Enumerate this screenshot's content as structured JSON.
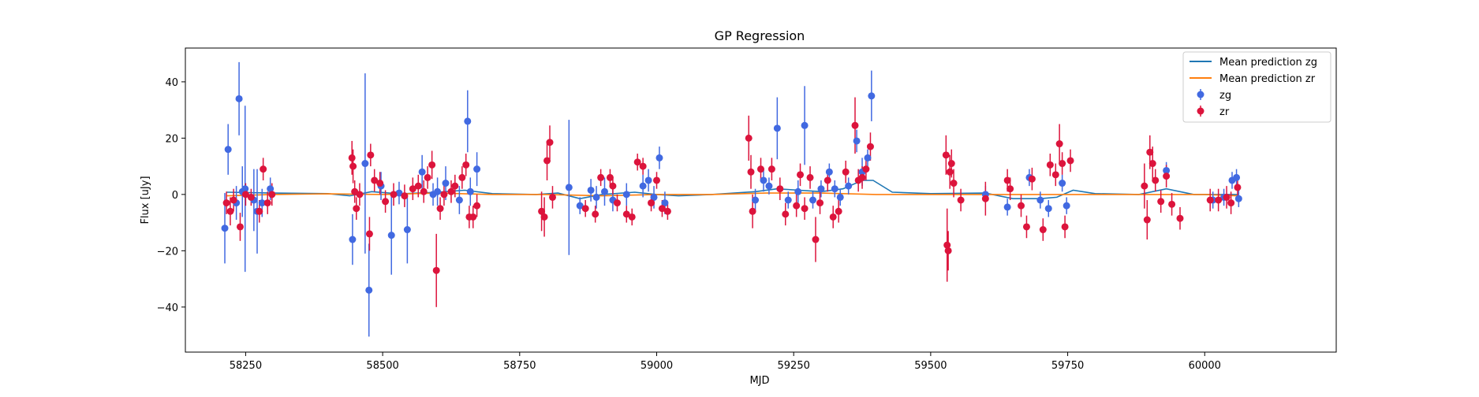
{
  "chart_data": {
    "type": "scatter",
    "title": "GP Regression",
    "xlabel": "MJD",
    "ylabel": "Flux [uJy]",
    "xlim": [
      58140,
      60240
    ],
    "ylim": [
      -56,
      52
    ],
    "xticks": [
      58250,
      58500,
      58750,
      59000,
      59250,
      59500,
      59750,
      60000
    ],
    "yticks": [
      -40,
      -20,
      0,
      20,
      40
    ],
    "grid": false,
    "legend_position": "top-right",
    "colors": {
      "zg": "#4169e1",
      "zr": "#dc143c",
      "line_zg": "#1f77b4",
      "line_zr": "#ff7f0e"
    },
    "legend": [
      "Mean prediction zg",
      "Mean prediction zr",
      "zg",
      "zr"
    ],
    "mean_zg": [
      [
        58215,
        0.8
      ],
      [
        58300,
        0.5
      ],
      [
        58400,
        0.3
      ],
      [
        58440,
        -0.5
      ],
      [
        58480,
        1.0
      ],
      [
        58530,
        0.2
      ],
      [
        58600,
        0.8
      ],
      [
        58650,
        1.5
      ],
      [
        58700,
        0.3
      ],
      [
        58780,
        0.0
      ],
      [
        58820,
        0.5
      ],
      [
        58860,
        -1.5
      ],
      [
        58900,
        0.0
      ],
      [
        58960,
        0.8
      ],
      [
        59000,
        0.0
      ],
      [
        59040,
        -0.5
      ],
      [
        59100,
        0.0
      ],
      [
        59180,
        1.0
      ],
      [
        59220,
        2.0
      ],
      [
        59260,
        1.5
      ],
      [
        59300,
        1.0
      ],
      [
        59340,
        2.0
      ],
      [
        59375,
        5.0
      ],
      [
        59395,
        5.0
      ],
      [
        59430,
        0.8
      ],
      [
        59500,
        0.3
      ],
      [
        59600,
        0.5
      ],
      [
        59650,
        -1.5
      ],
      [
        59700,
        -1.5
      ],
      [
        59730,
        -1.0
      ],
      [
        59760,
        1.5
      ],
      [
        59800,
        0.3
      ],
      [
        59880,
        0.0
      ],
      [
        59930,
        2.0
      ],
      [
        59980,
        0.0
      ],
      [
        60060,
        0.0
      ]
    ],
    "mean_zr": [
      [
        58215,
        -0.5
      ],
      [
        58300,
        0.0
      ],
      [
        58400,
        0.2
      ],
      [
        58500,
        0.0
      ],
      [
        58600,
        0.5
      ],
      [
        58700,
        0.0
      ],
      [
        58800,
        0.0
      ],
      [
        58900,
        -0.5
      ],
      [
        59000,
        0.0
      ],
      [
        59100,
        0.0
      ],
      [
        59200,
        0.5
      ],
      [
        59300,
        0.5
      ],
      [
        59400,
        0.0
      ],
      [
        59500,
        0.0
      ],
      [
        59600,
        0.0
      ],
      [
        59700,
        0.0
      ],
      [
        59800,
        0.0
      ],
      [
        59900,
        0.0
      ],
      [
        60000,
        0.0
      ],
      [
        60060,
        -0.5
      ]
    ],
    "zg": [
      [
        58212,
        -12,
        12.5
      ],
      [
        58218,
        16,
        9
      ],
      [
        58233,
        -3,
        6
      ],
      [
        58238,
        34,
        13
      ],
      [
        58244,
        1,
        9
      ],
      [
        58249,
        2,
        29.5
      ],
      [
        58265,
        -2,
        11
      ],
      [
        58271,
        -6,
        15
      ],
      [
        58280,
        -3,
        5
      ],
      [
        58295,
        2,
        4
      ],
      [
        58445,
        -16,
        9
      ],
      [
        58468,
        11,
        32
      ],
      [
        58475,
        -34,
        16.5
      ],
      [
        58497,
        3,
        5
      ],
      [
        58516,
        -14.5,
        14
      ],
      [
        58530,
        0.5,
        4
      ],
      [
        58545,
        -12.5,
        12
      ],
      [
        58572,
        8,
        6
      ],
      [
        58592,
        0,
        4
      ],
      [
        58600,
        1,
        5
      ],
      [
        58615,
        4,
        6
      ],
      [
        58640,
        -2,
        5
      ],
      [
        58655,
        26,
        11
      ],
      [
        58660,
        1,
        5
      ],
      [
        58672,
        9,
        6
      ],
      [
        58840,
        2.5,
        24
      ],
      [
        58860,
        -4,
        3
      ],
      [
        58880,
        1.5,
        4
      ],
      [
        58890,
        -1,
        4
      ],
      [
        58905,
        1,
        5
      ],
      [
        58920,
        -2,
        4
      ],
      [
        58945,
        0,
        4
      ],
      [
        58975,
        3,
        4
      ],
      [
        58985,
        5,
        4
      ],
      [
        58995,
        -1,
        4
      ],
      [
        59005,
        13,
        4
      ],
      [
        59015,
        -3,
        4
      ],
      [
        59180,
        -2,
        4
      ],
      [
        59195,
        5,
        4
      ],
      [
        59205,
        3,
        3
      ],
      [
        59220,
        23.5,
        11
      ],
      [
        59240,
        -2,
        3
      ],
      [
        59258,
        1,
        4
      ],
      [
        59270,
        24.5,
        14
      ],
      [
        59285,
        -2,
        3
      ],
      [
        59300,
        2,
        3
      ],
      [
        59315,
        8,
        3
      ],
      [
        59325,
        2,
        3
      ],
      [
        59335,
        -1,
        3
      ],
      [
        59350,
        3,
        3
      ],
      [
        59365,
        19,
        4
      ],
      [
        59375,
        8,
        5
      ],
      [
        59385,
        13,
        3
      ],
      [
        59392,
        35,
        9
      ],
      [
        59600,
        0,
        3
      ],
      [
        59640,
        -4.5,
        3
      ],
      [
        59680,
        6,
        3
      ],
      [
        59700,
        -2,
        3
      ],
      [
        59715,
        -5,
        3
      ],
      [
        59740,
        4,
        3
      ],
      [
        59748,
        -4,
        3
      ],
      [
        59930,
        8.5,
        3
      ],
      [
        60015,
        -2,
        3
      ],
      [
        60035,
        -1,
        3
      ],
      [
        60050,
        5,
        3
      ],
      [
        60058,
        6,
        3
      ],
      [
        60062,
        -1.5,
        3
      ]
    ],
    "zr": [
      [
        58215,
        -3,
        4
      ],
      [
        58222,
        -6,
        5
      ],
      [
        58228,
        -2,
        4
      ],
      [
        58240,
        -11.5,
        5
      ],
      [
        58250,
        0,
        4
      ],
      [
        58260,
        -1,
        3
      ],
      [
        58275,
        -6,
        4
      ],
      [
        58282,
        9,
        4
      ],
      [
        58290,
        -3,
        4
      ],
      [
        58298,
        0,
        4
      ],
      [
        58444,
        13,
        6
      ],
      [
        58446,
        10,
        6
      ],
      [
        58449,
        1,
        4
      ],
      [
        58452,
        -5,
        4
      ],
      [
        58458,
        0,
        4
      ],
      [
        58476,
        -14,
        6
      ],
      [
        58478,
        14,
        4
      ],
      [
        58485,
        5,
        4
      ],
      [
        58495,
        4,
        4
      ],
      [
        58505,
        -2.5,
        4
      ],
      [
        58520,
        0,
        4
      ],
      [
        58540,
        -0.5,
        4
      ],
      [
        58555,
        2,
        4
      ],
      [
        58565,
        3,
        4
      ],
      [
        58575,
        1,
        4
      ],
      [
        58582,
        6,
        4
      ],
      [
        58590,
        10.5,
        5
      ],
      [
        58598,
        -27,
        13
      ],
      [
        58605,
        -5,
        4
      ],
      [
        58612,
        0,
        4
      ],
      [
        58625,
        1,
        4
      ],
      [
        58632,
        3,
        4
      ],
      [
        58645,
        6,
        4
      ],
      [
        58652,
        10.5,
        4
      ],
      [
        58658,
        -8,
        4
      ],
      [
        58665,
        -8,
        4
      ],
      [
        58672,
        -4,
        4
      ],
      [
        58790,
        -6,
        7
      ],
      [
        58795,
        -8,
        7
      ],
      [
        58800,
        12,
        7
      ],
      [
        58805,
        18.5,
        6
      ],
      [
        58810,
        -1,
        4
      ],
      [
        58870,
        -5,
        3
      ],
      [
        58888,
        -7,
        3
      ],
      [
        58898,
        6,
        3
      ],
      [
        58915,
        6,
        3
      ],
      [
        58920,
        3,
        3
      ],
      [
        58928,
        -3,
        3
      ],
      [
        58945,
        -7,
        3
      ],
      [
        58955,
        -8,
        3
      ],
      [
        58965,
        11.5,
        3
      ],
      [
        58975,
        10,
        3
      ],
      [
        58990,
        -3,
        3
      ],
      [
        59000,
        5,
        3
      ],
      [
        59010,
        -5,
        3
      ],
      [
        59020,
        -6,
        3
      ],
      [
        59168,
        20,
        8
      ],
      [
        59172,
        8,
        6
      ],
      [
        59175,
        -6,
        6
      ],
      [
        59190,
        9,
        4
      ],
      [
        59210,
        9,
        4
      ],
      [
        59225,
        2,
        4
      ],
      [
        59235,
        -7,
        4
      ],
      [
        59255,
        -4,
        4
      ],
      [
        59262,
        7,
        4
      ],
      [
        59270,
        -5,
        4
      ],
      [
        59280,
        6,
        4
      ],
      [
        59290,
        -16,
        8
      ],
      [
        59298,
        -3,
        4
      ],
      [
        59312,
        5,
        4
      ],
      [
        59322,
        -8,
        4
      ],
      [
        59332,
        -6,
        4
      ],
      [
        59345,
        8,
        4
      ],
      [
        59362,
        24.5,
        10
      ],
      [
        59368,
        5,
        4
      ],
      [
        59375,
        6,
        4
      ],
      [
        59382,
        9,
        4
      ],
      [
        59390,
        17,
        5
      ],
      [
        59528,
        14,
        7
      ],
      [
        59530,
        -18,
        13
      ],
      [
        59532,
        -20,
        7
      ],
      [
        59535,
        8,
        6
      ],
      [
        59538,
        11,
        5
      ],
      [
        59542,
        4,
        5
      ],
      [
        59555,
        -2,
        4
      ],
      [
        59600,
        -1.5,
        6
      ],
      [
        59640,
        5,
        4
      ],
      [
        59645,
        2,
        4
      ],
      [
        59665,
        -4,
        4
      ],
      [
        59675,
        -11.5,
        4
      ],
      [
        59685,
        5.5,
        4
      ],
      [
        59705,
        -12.5,
        4
      ],
      [
        59718,
        10.5,
        4
      ],
      [
        59728,
        7,
        4
      ],
      [
        59735,
        18,
        7
      ],
      [
        59740,
        11,
        4
      ],
      [
        59745,
        -11.5,
        4
      ],
      [
        59755,
        12,
        4
      ],
      [
        59890,
        3,
        8
      ],
      [
        59895,
        -9,
        7
      ],
      [
        59900,
        15,
        6
      ],
      [
        59905,
        11,
        6
      ],
      [
        59910,
        5,
        4
      ],
      [
        59920,
        -2.5,
        4
      ],
      [
        59930,
        6.5,
        4
      ],
      [
        59940,
        -3.5,
        4
      ],
      [
        59955,
        -8.5,
        4
      ],
      [
        60010,
        -2,
        4
      ],
      [
        60025,
        -2,
        4
      ],
      [
        60040,
        -1,
        4
      ],
      [
        60048,
        -3,
        4
      ],
      [
        60060,
        2.5,
        4
      ]
    ]
  }
}
